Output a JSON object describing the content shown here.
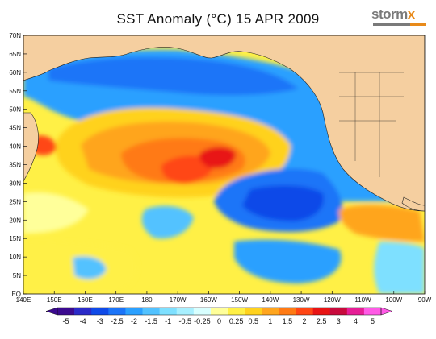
{
  "map": {
    "title": "SST Anomaly (°C) 15 APR 2009",
    "logo_main": "storm",
    "logo_accent": "x",
    "lat_labels": [
      "EQ",
      "5N",
      "10N",
      "15N",
      "20N",
      "25N",
      "30N",
      "35N",
      "40N",
      "45N",
      "50N",
      "55N",
      "60N",
      "65N",
      "70N"
    ],
    "lon_labels": [
      "140E",
      "150E",
      "160E",
      "170E",
      "180",
      "170W",
      "160W",
      "150W",
      "140W",
      "130W",
      "120W",
      "110W",
      "100W",
      "90W"
    ],
    "land_color": "#f5cfa0"
  },
  "colorbar": {
    "labels": [
      "-5",
      "-4",
      "-3",
      "-2.5",
      "-2",
      "-1.5",
      "-1",
      "-0.5",
      "-0.25",
      "0",
      "0.25",
      "0.5",
      "1",
      "1.5",
      "2",
      "2.5",
      "3",
      "4",
      "5"
    ],
    "colors": [
      "#3b0a8f",
      "#2a2ac8",
      "#0f4ae8",
      "#1b74f8",
      "#2aa0ff",
      "#52c2ff",
      "#7ee0ff",
      "#a8f0ff",
      "#d8ffff",
      "#ffff9a",
      "#fff046",
      "#ffd21e",
      "#ffa51e",
      "#ff7a14",
      "#ff4614",
      "#e81414",
      "#c80a3c",
      "#e61e96",
      "#ff5ae6"
    ]
  }
}
